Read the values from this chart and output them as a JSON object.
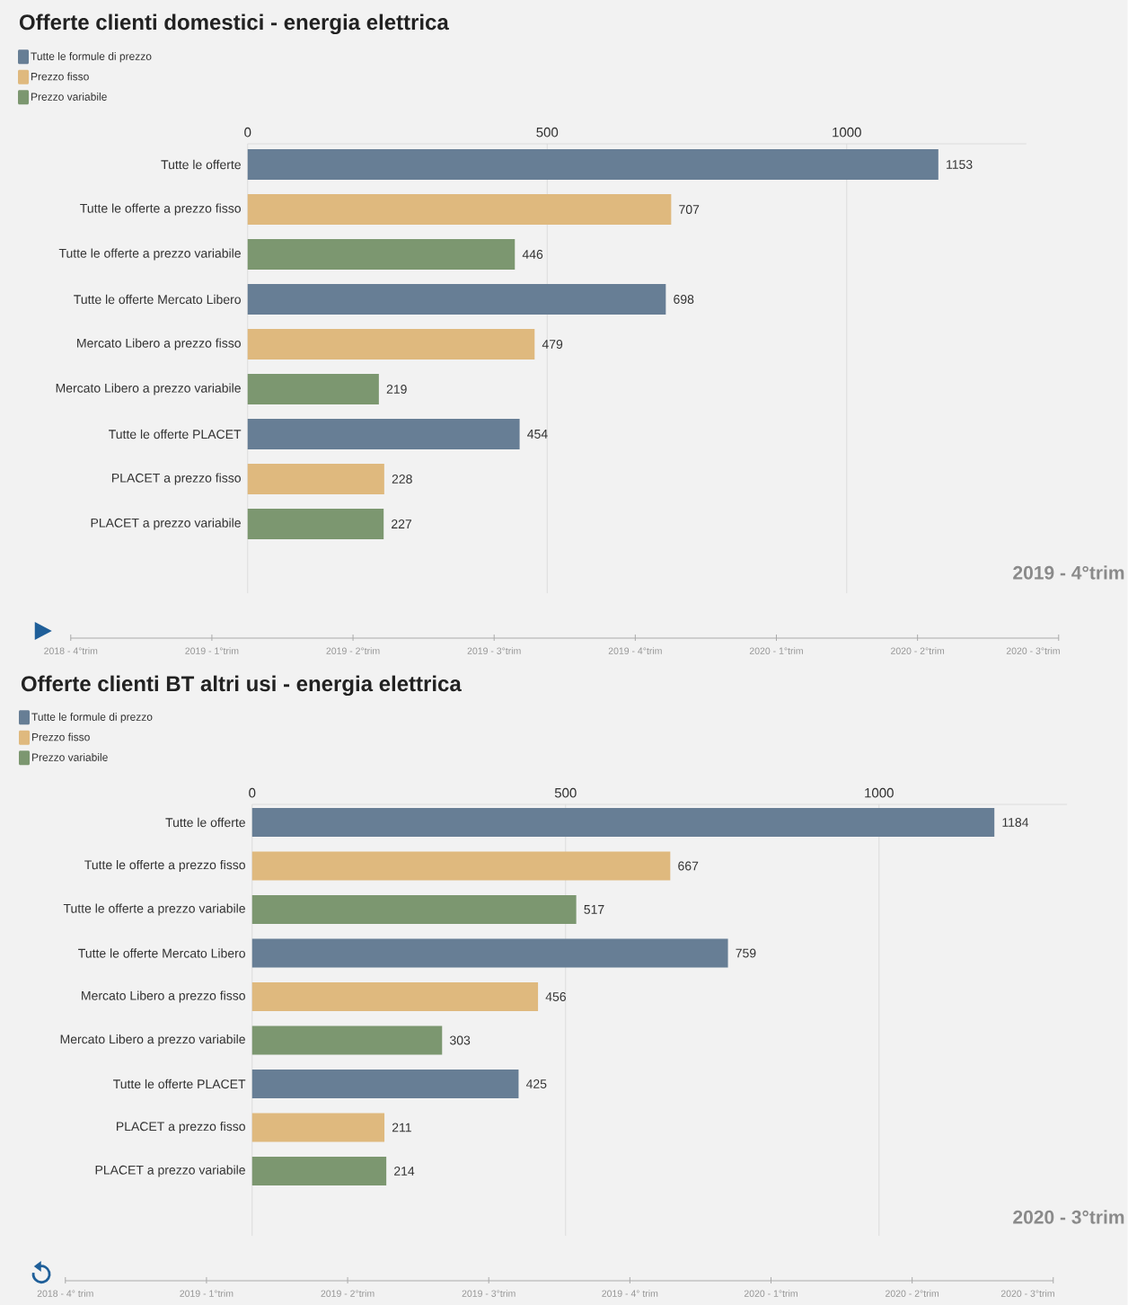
{
  "chart_data": [
    {
      "type": "bar",
      "orientation": "horizontal",
      "title": "Offerte clienti domestici - energia elettrica",
      "categories": [
        "Tutte le offerte",
        "Tutte le offerte a prezzo fisso",
        "Tutte le offerte a prezzo variabile",
        "Tutte le offerte Mercato Libero",
        "Mercato Libero a prezzo fisso",
        "Mercato Libero a prezzo variabile",
        "Tutte le offerte PLACET",
        "PLACET a prezzo fisso",
        "PLACET a prezzo variabile"
      ],
      "series": [
        {
          "name": "Tutte le formule di prezzo",
          "color": "#677e95",
          "values": [
            1153,
            null,
            null,
            698,
            null,
            null,
            454,
            null,
            null
          ]
        },
        {
          "name": "Prezzo fisso",
          "color": "#dfb97e",
          "values": [
            null,
            707,
            null,
            null,
            479,
            null,
            null,
            228,
            null
          ]
        },
        {
          "name": "Prezzo variabile",
          "color": "#7c9770",
          "values": [
            null,
            null,
            446,
            null,
            null,
            219,
            null,
            null,
            227
          ]
        }
      ],
      "xlim": [
        0,
        1300
      ],
      "xticks": [
        0,
        500,
        1000
      ],
      "grid": "x",
      "legend": "top left",
      "data_labels": true,
      "annotations": [
        "2019 - 4°trim",
        "2018 - 4°trim",
        "2019 - 1°trim",
        "2019 - 2°trim",
        "2019 - 3°trim",
        "2019 - 4°trim",
        "2020 - 1°trim",
        "2020 - 2°trim",
        "2020 - 3°trim"
      ]
    },
    {
      "type": "bar",
      "orientation": "horizontal",
      "title": "Offerte clienti BT altri usi - energia elettrica",
      "categories": [
        "Tutte le offerte",
        "Tutte le offerte a prezzo fisso",
        "Tutte le offerte a prezzo variabile",
        "Tutte le offerte Mercato Libero",
        "Mercato Libero a prezzo fisso",
        "Mercato Libero a prezzo variabile",
        "Tutte le offerte PLACET",
        "PLACET a prezzo fisso",
        "PLACET a prezzo variabile"
      ],
      "series": [
        {
          "name": "Tutte le formule di prezzo",
          "color": "#677e95",
          "values": [
            1184,
            null,
            null,
            759,
            null,
            null,
            425,
            null,
            null
          ]
        },
        {
          "name": "Prezzo fisso",
          "color": "#dfb97e",
          "values": [
            null,
            667,
            null,
            null,
            456,
            null,
            null,
            211,
            null
          ]
        },
        {
          "name": "Prezzo variabile",
          "color": "#7c9770",
          "values": [
            null,
            null,
            517,
            null,
            null,
            303,
            null,
            null,
            214
          ]
        }
      ],
      "xlim": [
        0,
        1300
      ],
      "xticks": [
        0,
        500,
        1000
      ],
      "grid": "x",
      "legend": "top left",
      "data_labels": true,
      "annotations": [
        "2020 - 3°trim",
        "2018 - 4° trim",
        "2019 - 1°trim",
        "2019 - 2°trim",
        "2019 - 3°trim",
        "2019 - 4° trim",
        "2020 - 1°trim",
        "2020 - 2°trim",
        "2020 - 3°trim"
      ]
    }
  ]
}
